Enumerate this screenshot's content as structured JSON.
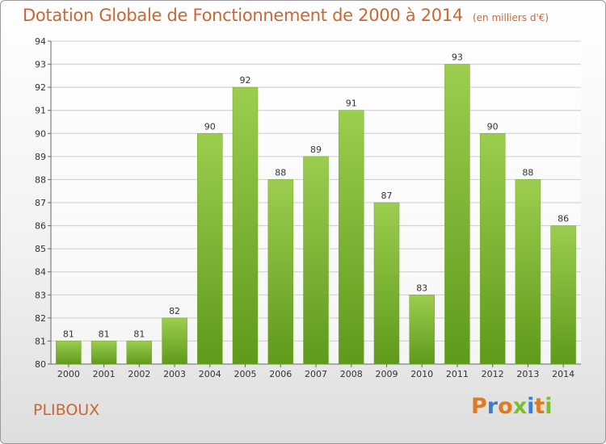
{
  "header": {
    "title": "Dotation Globale de Fonctionnement de 2000 à 2014",
    "unit": "(en milliers d'€)"
  },
  "footer": {
    "commune": "PLIBOUX",
    "logo_text": "Proxiti"
  },
  "colors": {
    "title": "#cc6633",
    "bar_light": "#9ccd4f",
    "bar_dark": "#5f9a1a",
    "grid": "#cccccc",
    "logo_letters": [
      "#e07a20",
      "#3d7fcf",
      "#e07a20",
      "#7bbf2a",
      "#3d7fcf",
      "#e07a20",
      "#7bbf2a"
    ]
  },
  "chart_data": {
    "type": "bar",
    "title": "Dotation Globale de Fonctionnement de 2000 à 2014",
    "subtitle": "(en milliers d'€)",
    "xlabel": "",
    "ylabel": "",
    "categories": [
      "2000",
      "2001",
      "2002",
      "2003",
      "2004",
      "2005",
      "2006",
      "2007",
      "2008",
      "2009",
      "2010",
      "2011",
      "2012",
      "2013",
      "2014"
    ],
    "values": [
      81,
      81,
      81,
      82,
      90,
      92,
      88,
      89,
      91,
      87,
      83,
      93,
      90,
      88,
      86
    ],
    "ylim": [
      80,
      94
    ],
    "yticks": [
      80,
      81,
      82,
      83,
      84,
      85,
      86,
      87,
      88,
      89,
      90,
      91,
      92,
      93,
      94
    ],
    "grid": true,
    "legend": "none"
  }
}
